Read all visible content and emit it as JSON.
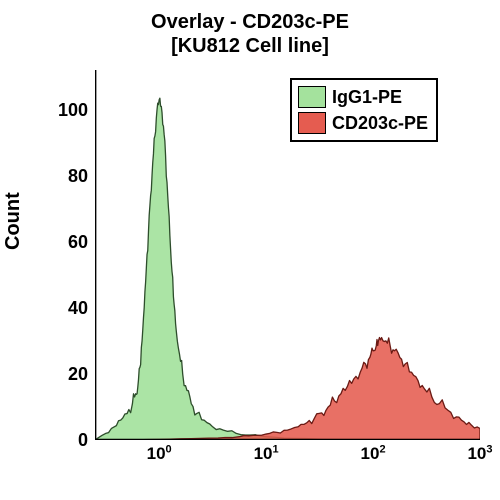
{
  "chart": {
    "type": "histogram",
    "title_line1": "Overlay - CD203c-PE",
    "title_line2": "[KU812 Cell line]",
    "title_fontsize": 20,
    "title_fontweight": "bold",
    "ylabel": "Count",
    "ylabel_fontsize": 20,
    "ylabel_fontweight": "bold",
    "background_color": "#ffffff",
    "axis_color": "#000000",
    "axis_width": 2.5,
    "x": {
      "scale": "log",
      "min_exp": -0.6,
      "max_exp": 3.0,
      "tick_exponents": [
        0,
        1,
        2,
        3
      ],
      "tick_fontsize": 17,
      "minor_ticks": true
    },
    "y": {
      "scale": "linear",
      "min": 0,
      "max": 112,
      "ticks": [
        0,
        20,
        40,
        60,
        80,
        100
      ],
      "tick_fontsize": 18
    },
    "legend": {
      "position": "top-right-inside",
      "border_color": "#000000",
      "items": [
        {
          "label": "IgG1-PE",
          "fill": "#a4e29d",
          "stroke": "#2d4d2b"
        },
        {
          "label": "CD203c-PE",
          "fill": "#e55c50",
          "stroke": "#6b1a14"
        }
      ]
    },
    "series": [
      {
        "name": "IgG1-PE",
        "fill": "#a4e29d",
        "stroke": "#2d4d2b",
        "stroke_width": 1.3,
        "opacity": 0.92,
        "points": [
          [
            -0.6,
            0
          ],
          [
            -0.5,
            2
          ],
          [
            -0.42,
            4
          ],
          [
            -0.36,
            6
          ],
          [
            -0.3,
            8
          ],
          [
            -0.25,
            11
          ],
          [
            -0.22,
            14
          ],
          [
            -0.2,
            16
          ],
          [
            -0.18,
            22
          ],
          [
            -0.16,
            30
          ],
          [
            -0.14,
            40
          ],
          [
            -0.12,
            52
          ],
          [
            -0.1,
            63
          ],
          [
            -0.08,
            74
          ],
          [
            -0.06,
            84
          ],
          [
            -0.04,
            92
          ],
          [
            -0.02,
            100
          ],
          [
            0.0,
            103
          ],
          [
            0.02,
            101
          ],
          [
            0.04,
            95
          ],
          [
            0.06,
            86
          ],
          [
            0.08,
            74
          ],
          [
            0.1,
            62
          ],
          [
            0.12,
            51
          ],
          [
            0.14,
            41
          ],
          [
            0.16,
            33
          ],
          [
            0.19,
            26
          ],
          [
            0.22,
            20
          ],
          [
            0.26,
            15
          ],
          [
            0.3,
            11
          ],
          [
            0.35,
            8
          ],
          [
            0.42,
            6
          ],
          [
            0.5,
            4
          ],
          [
            0.6,
            3
          ],
          [
            0.72,
            2
          ],
          [
            0.85,
            1.5
          ],
          [
            1.0,
            1
          ],
          [
            1.25,
            0.5
          ],
          [
            1.6,
            0.2
          ],
          [
            2.0,
            0.1
          ],
          [
            2.5,
            0
          ],
          [
            3.0,
            0
          ]
        ]
      },
      {
        "name": "CD203c-PE",
        "fill": "#e55c50",
        "stroke": "#6b1a14",
        "stroke_width": 1.3,
        "opacity": 0.88,
        "points": [
          [
            -0.6,
            0
          ],
          [
            -0.3,
            0
          ],
          [
            0.0,
            0.2
          ],
          [
            0.3,
            0.4
          ],
          [
            0.55,
            0.6
          ],
          [
            0.75,
            1.0
          ],
          [
            0.88,
            1.4
          ],
          [
            1.0,
            1.8
          ],
          [
            1.1,
            2.3
          ],
          [
            1.2,
            3.0
          ],
          [
            1.3,
            4.0
          ],
          [
            1.38,
            5.2
          ],
          [
            1.45,
            6.5
          ],
          [
            1.52,
            8.2
          ],
          [
            1.58,
            10.0
          ],
          [
            1.64,
            11.8
          ],
          [
            1.7,
            14.0
          ],
          [
            1.76,
            16.2
          ],
          [
            1.82,
            18.5
          ],
          [
            1.88,
            20.5
          ],
          [
            1.93,
            23.0
          ],
          [
            1.97,
            25.0
          ],
          [
            2.0,
            27.0
          ],
          [
            2.03,
            28.5
          ],
          [
            2.05,
            30.0
          ],
          [
            2.08,
            31.0
          ],
          [
            2.12,
            30.0
          ],
          [
            2.16,
            28.5
          ],
          [
            2.2,
            27.0
          ],
          [
            2.25,
            25.0
          ],
          [
            2.3,
            23.0
          ],
          [
            2.36,
            20.5
          ],
          [
            2.42,
            18.0
          ],
          [
            2.48,
            15.5
          ],
          [
            2.55,
            13.0
          ],
          [
            2.62,
            11.0
          ],
          [
            2.7,
            9.0
          ],
          [
            2.78,
            7.0
          ],
          [
            2.85,
            5.5
          ],
          [
            2.92,
            4.5
          ],
          [
            3.0,
            3.5
          ]
        ]
      }
    ]
  }
}
